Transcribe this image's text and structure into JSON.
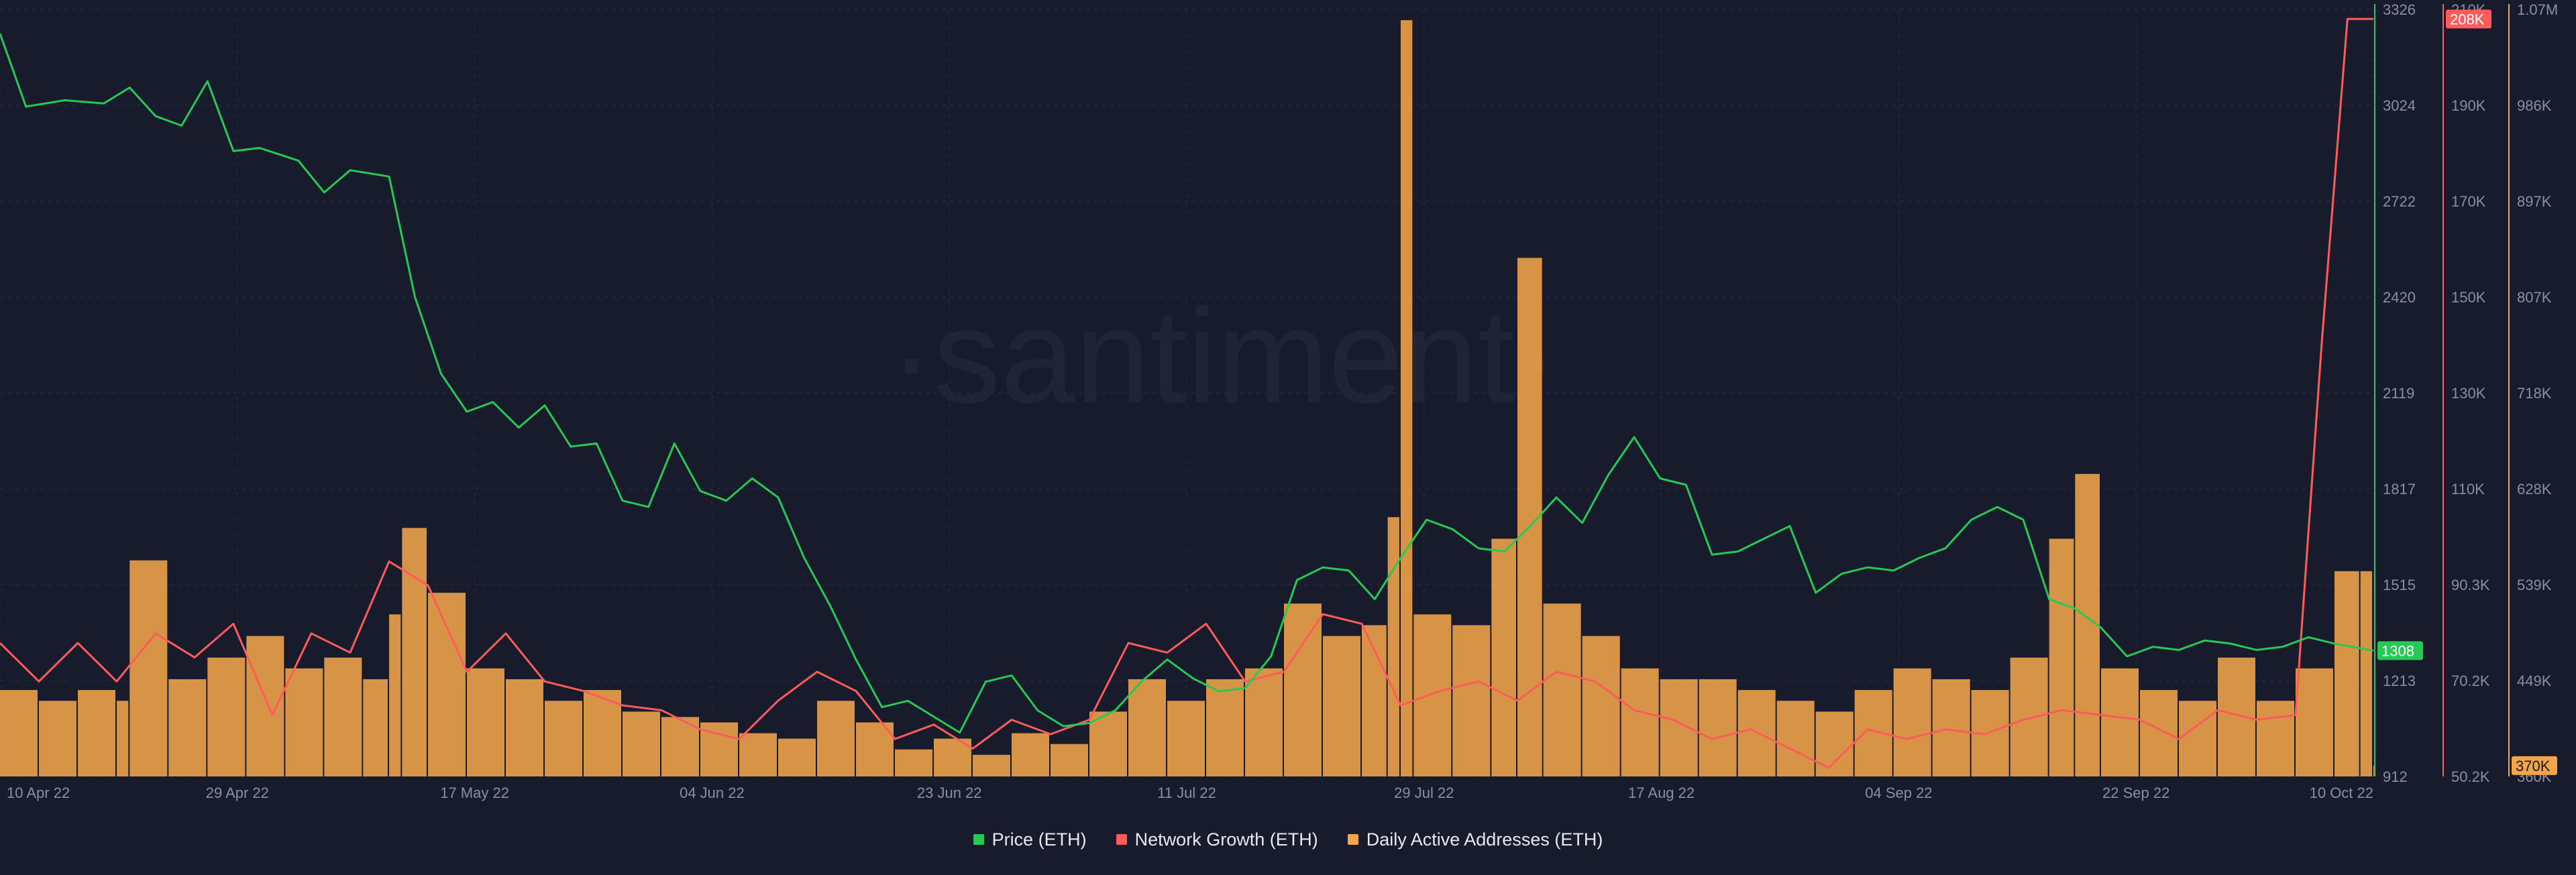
{
  "watermark": "·santiment·",
  "legend": [
    {
      "label": "Price (ETH)",
      "color": "#26c953"
    },
    {
      "label": "Network Growth (ETH)",
      "color": "#ff5b5b"
    },
    {
      "label": "Daily Active Addresses (ETH)",
      "color": "#f2a54a"
    }
  ],
  "chart_data": {
    "type": "line",
    "grid": true,
    "x": {
      "start": "2022-04-10",
      "end": "2022-10-10",
      "tick_labels": [
        "10 Apr 22",
        "29 Apr 22",
        "17 May 22",
        "04 Jun 22",
        "23 Jun 22",
        "11 Jul 22",
        "29 Jul 22",
        "17 Aug 22",
        "04 Sep 22",
        "22 Sep 22",
        "10 Oct 22"
      ]
    },
    "axes": {
      "price": {
        "range": [
          912,
          3326
        ],
        "tick_labels": [
          "3326",
          "3024",
          "2722",
          "2420",
          "2119",
          "1817",
          "1515",
          "1213",
          "912"
        ],
        "last_value_label": "1308",
        "color": "#26c953"
      },
      "network_growth": {
        "range": [
          50200,
          210000
        ],
        "tick_labels": [
          "210K",
          "190K",
          "170K",
          "150K",
          "130K",
          "110K",
          "90.3K",
          "70.2K",
          "50.2K"
        ],
        "last_value_label": "208K",
        "color": "#ff5b5b"
      },
      "daily_active_addresses": {
        "range": [
          360000,
          1070000
        ],
        "tick_labels": [
          "1.07M",
          "986K",
          "897K",
          "807K",
          "718K",
          "628K",
          "539K",
          "449K",
          "360K"
        ],
        "last_value_label": "370K",
        "color": "#f2a54a"
      }
    },
    "series": [
      {
        "name": "Price (ETH)",
        "kind": "line",
        "axis": "price",
        "color": "#26c953",
        "points": [
          [
            "2022-04-10",
            3250
          ],
          [
            "2022-04-12",
            3020
          ],
          [
            "2022-04-15",
            3040
          ],
          [
            "2022-04-18",
            3030
          ],
          [
            "2022-04-20",
            3080
          ],
          [
            "2022-04-22",
            2990
          ],
          [
            "2022-04-24",
            2960
          ],
          [
            "2022-04-26",
            3100
          ],
          [
            "2022-04-28",
            2880
          ],
          [
            "2022-04-30",
            2890
          ],
          [
            "2022-05-03",
            2850
          ],
          [
            "2022-05-05",
            2750
          ],
          [
            "2022-05-07",
            2820
          ],
          [
            "2022-05-10",
            2800
          ],
          [
            "2022-05-12",
            2420
          ],
          [
            "2022-05-14",
            2180
          ],
          [
            "2022-05-16",
            2060
          ],
          [
            "2022-05-18",
            2090
          ],
          [
            "2022-05-20",
            2010
          ],
          [
            "2022-05-22",
            2080
          ],
          [
            "2022-05-24",
            1950
          ],
          [
            "2022-05-26",
            1960
          ],
          [
            "2022-05-28",
            1780
          ],
          [
            "2022-05-30",
            1760
          ],
          [
            "2022-06-01",
            1960
          ],
          [
            "2022-06-03",
            1810
          ],
          [
            "2022-06-05",
            1780
          ],
          [
            "2022-06-07",
            1850
          ],
          [
            "2022-06-09",
            1790
          ],
          [
            "2022-06-11",
            1600
          ],
          [
            "2022-06-13",
            1450
          ],
          [
            "2022-06-15",
            1280
          ],
          [
            "2022-06-17",
            1130
          ],
          [
            "2022-06-19",
            1150
          ],
          [
            "2022-06-21",
            1100
          ],
          [
            "2022-06-23",
            1050
          ],
          [
            "2022-06-25",
            1210
          ],
          [
            "2022-06-27",
            1230
          ],
          [
            "2022-06-29",
            1120
          ],
          [
            "2022-07-01",
            1070
          ],
          [
            "2022-07-03",
            1080
          ],
          [
            "2022-07-05",
            1120
          ],
          [
            "2022-07-07",
            1210
          ],
          [
            "2022-07-09",
            1280
          ],
          [
            "2022-07-11",
            1220
          ],
          [
            "2022-07-13",
            1180
          ],
          [
            "2022-07-15",
            1190
          ],
          [
            "2022-07-17",
            1290
          ],
          [
            "2022-07-19",
            1530
          ],
          [
            "2022-07-21",
            1570
          ],
          [
            "2022-07-23",
            1560
          ],
          [
            "2022-07-25",
            1470
          ],
          [
            "2022-07-27",
            1600
          ],
          [
            "2022-07-29",
            1720
          ],
          [
            "2022-07-31",
            1690
          ],
          [
            "2022-08-02",
            1630
          ],
          [
            "2022-08-04",
            1620
          ],
          [
            "2022-08-06",
            1700
          ],
          [
            "2022-08-08",
            1790
          ],
          [
            "2022-08-10",
            1710
          ],
          [
            "2022-08-12",
            1860
          ],
          [
            "2022-08-14",
            1980
          ],
          [
            "2022-08-16",
            1850
          ],
          [
            "2022-08-18",
            1830
          ],
          [
            "2022-08-20",
            1610
          ],
          [
            "2022-08-22",
            1620
          ],
          [
            "2022-08-24",
            1660
          ],
          [
            "2022-08-26",
            1700
          ],
          [
            "2022-08-28",
            1490
          ],
          [
            "2022-08-30",
            1550
          ],
          [
            "2022-09-01",
            1570
          ],
          [
            "2022-09-03",
            1560
          ],
          [
            "2022-09-05",
            1600
          ],
          [
            "2022-09-07",
            1630
          ],
          [
            "2022-09-09",
            1720
          ],
          [
            "2022-09-11",
            1760
          ],
          [
            "2022-09-13",
            1720
          ],
          [
            "2022-09-15",
            1470
          ],
          [
            "2022-09-17",
            1440
          ],
          [
            "2022-09-19",
            1380
          ],
          [
            "2022-09-21",
            1290
          ],
          [
            "2022-09-23",
            1320
          ],
          [
            "2022-09-25",
            1310
          ],
          [
            "2022-09-27",
            1340
          ],
          [
            "2022-09-29",
            1330
          ],
          [
            "2022-10-01",
            1310
          ],
          [
            "2022-10-03",
            1320
          ],
          [
            "2022-10-05",
            1350
          ],
          [
            "2022-10-07",
            1330
          ],
          [
            "2022-10-10",
            1308
          ]
        ]
      },
      {
        "name": "Network Growth (ETH)",
        "kind": "line",
        "axis": "network_growth",
        "color": "#ff5b5b",
        "points": [
          [
            "2022-04-10",
            78000
          ],
          [
            "2022-04-13",
            70000
          ],
          [
            "2022-04-16",
            78000
          ],
          [
            "2022-04-19",
            70000
          ],
          [
            "2022-04-22",
            80000
          ],
          [
            "2022-04-25",
            75000
          ],
          [
            "2022-04-28",
            82000
          ],
          [
            "2022-05-01",
            63000
          ],
          [
            "2022-05-04",
            80000
          ],
          [
            "2022-05-07",
            76000
          ],
          [
            "2022-05-10",
            95000
          ],
          [
            "2022-05-13",
            90000
          ],
          [
            "2022-05-16",
            72000
          ],
          [
            "2022-05-19",
            80000
          ],
          [
            "2022-05-22",
            70000
          ],
          [
            "2022-05-25",
            68000
          ],
          [
            "2022-05-28",
            65000
          ],
          [
            "2022-05-31",
            64000
          ],
          [
            "2022-06-03",
            60000
          ],
          [
            "2022-06-06",
            58000
          ],
          [
            "2022-06-09",
            66000
          ],
          [
            "2022-06-12",
            72000
          ],
          [
            "2022-06-15",
            68000
          ],
          [
            "2022-06-18",
            58000
          ],
          [
            "2022-06-21",
            61000
          ],
          [
            "2022-06-24",
            56000
          ],
          [
            "2022-06-27",
            62000
          ],
          [
            "2022-06-30",
            59000
          ],
          [
            "2022-07-03",
            62000
          ],
          [
            "2022-07-06",
            78000
          ],
          [
            "2022-07-09",
            76000
          ],
          [
            "2022-07-12",
            82000
          ],
          [
            "2022-07-15",
            70000
          ],
          [
            "2022-07-18",
            72000
          ],
          [
            "2022-07-21",
            84000
          ],
          [
            "2022-07-24",
            82000
          ],
          [
            "2022-07-27",
            65000
          ],
          [
            "2022-07-30",
            68000
          ],
          [
            "2022-08-02",
            70000
          ],
          [
            "2022-08-05",
            66000
          ],
          [
            "2022-08-08",
            72000
          ],
          [
            "2022-08-11",
            70000
          ],
          [
            "2022-08-14",
            64000
          ],
          [
            "2022-08-17",
            62000
          ],
          [
            "2022-08-20",
            58000
          ],
          [
            "2022-08-23",
            60000
          ],
          [
            "2022-08-26",
            56000
          ],
          [
            "2022-08-29",
            52000
          ],
          [
            "2022-09-01",
            60000
          ],
          [
            "2022-09-04",
            58000
          ],
          [
            "2022-09-07",
            60000
          ],
          [
            "2022-09-10",
            59000
          ],
          [
            "2022-09-13",
            62000
          ],
          [
            "2022-09-16",
            64000
          ],
          [
            "2022-09-19",
            63000
          ],
          [
            "2022-09-22",
            62000
          ],
          [
            "2022-09-25",
            58000
          ],
          [
            "2022-09-28",
            64000
          ],
          [
            "2022-10-01",
            62000
          ],
          [
            "2022-10-04",
            63000
          ],
          [
            "2022-10-06",
            140000
          ],
          [
            "2022-10-08",
            208000
          ],
          [
            "2022-10-10",
            208000
          ]
        ]
      },
      {
        "name": "Daily Active Addresses (ETH)",
        "kind": "bar",
        "axis": "daily_active_addresses",
        "color": "#f2a54a",
        "points": [
          [
            "2022-04-10",
            440000
          ],
          [
            "2022-04-13",
            430000
          ],
          [
            "2022-04-16",
            440000
          ],
          [
            "2022-04-19",
            430000
          ],
          [
            "2022-04-20",
            560000
          ],
          [
            "2022-04-23",
            450000
          ],
          [
            "2022-04-26",
            470000
          ],
          [
            "2022-04-29",
            490000
          ],
          [
            "2022-05-02",
            460000
          ],
          [
            "2022-05-05",
            470000
          ],
          [
            "2022-05-08",
            450000
          ],
          [
            "2022-05-10",
            510000
          ],
          [
            "2022-05-11",
            590000
          ],
          [
            "2022-05-13",
            530000
          ],
          [
            "2022-05-16",
            460000
          ],
          [
            "2022-05-19",
            450000
          ],
          [
            "2022-05-22",
            430000
          ],
          [
            "2022-05-25",
            440000
          ],
          [
            "2022-05-28",
            420000
          ],
          [
            "2022-05-31",
            415000
          ],
          [
            "2022-06-03",
            410000
          ],
          [
            "2022-06-06",
            400000
          ],
          [
            "2022-06-09",
            395000
          ],
          [
            "2022-06-12",
            430000
          ],
          [
            "2022-06-15",
            410000
          ],
          [
            "2022-06-18",
            385000
          ],
          [
            "2022-06-21",
            395000
          ],
          [
            "2022-06-24",
            380000
          ],
          [
            "2022-06-27",
            400000
          ],
          [
            "2022-06-30",
            390000
          ],
          [
            "2022-07-03",
            420000
          ],
          [
            "2022-07-06",
            450000
          ],
          [
            "2022-07-09",
            430000
          ],
          [
            "2022-07-12",
            450000
          ],
          [
            "2022-07-15",
            460000
          ],
          [
            "2022-07-18",
            520000
          ],
          [
            "2022-07-21",
            490000
          ],
          [
            "2022-07-24",
            500000
          ],
          [
            "2022-07-26",
            600000
          ],
          [
            "2022-07-27",
            1060000
          ],
          [
            "2022-07-28",
            510000
          ],
          [
            "2022-07-31",
            500000
          ],
          [
            "2022-08-03",
            580000
          ],
          [
            "2022-08-05",
            840000
          ],
          [
            "2022-08-07",
            520000
          ],
          [
            "2022-08-10",
            490000
          ],
          [
            "2022-08-13",
            460000
          ],
          [
            "2022-08-16",
            450000
          ],
          [
            "2022-08-19",
            450000
          ],
          [
            "2022-08-22",
            440000
          ],
          [
            "2022-08-25",
            430000
          ],
          [
            "2022-08-28",
            420000
          ],
          [
            "2022-08-31",
            440000
          ],
          [
            "2022-09-03",
            460000
          ],
          [
            "2022-09-06",
            450000
          ],
          [
            "2022-09-09",
            440000
          ],
          [
            "2022-09-12",
            470000
          ],
          [
            "2022-09-15",
            580000
          ],
          [
            "2022-09-17",
            640000
          ],
          [
            "2022-09-19",
            460000
          ],
          [
            "2022-09-22",
            440000
          ],
          [
            "2022-09-25",
            430000
          ],
          [
            "2022-09-28",
            470000
          ],
          [
            "2022-10-01",
            430000
          ],
          [
            "2022-10-04",
            460000
          ],
          [
            "2022-10-07",
            550000
          ],
          [
            "2022-10-09",
            550000
          ],
          [
            "2022-10-10",
            370000
          ]
        ]
      }
    ]
  }
}
